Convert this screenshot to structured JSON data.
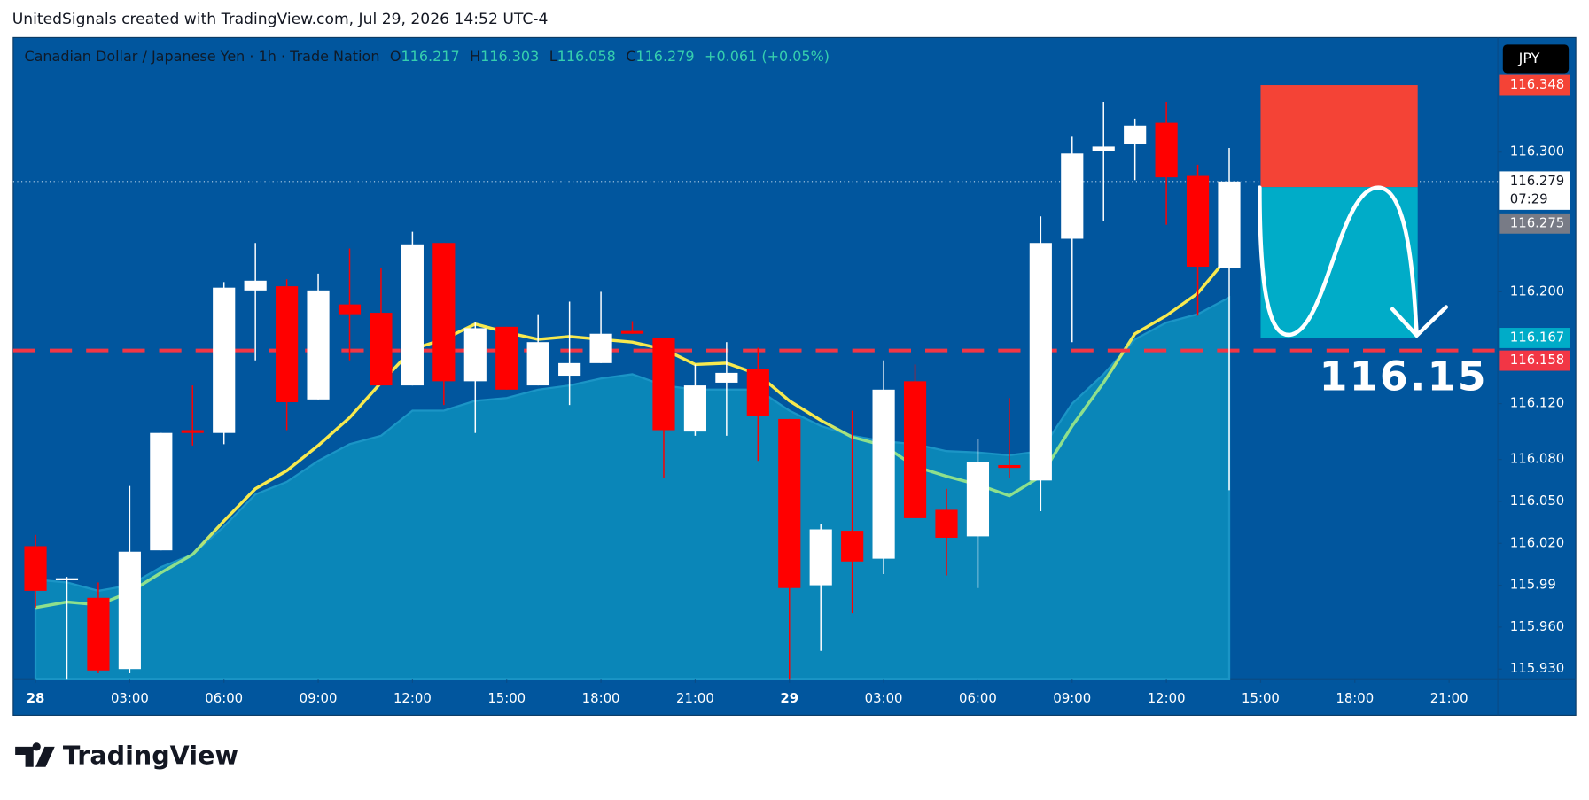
{
  "caption": "UnitedSignals created with TradingView.com, Jul 29, 2026 14:52 UTC-4",
  "footer": {
    "brand": "TradingView"
  },
  "chart_data": {
    "type": "candlestick",
    "symbol_title": "Canadian Dollar / Japanese Yen · 1h · Trade Nation",
    "ohlc_letters": [
      "O",
      "H",
      "L",
      "C"
    ],
    "change": "+0.061 (+0.05%)",
    "currency": "JPY",
    "countdown": "07:29",
    "annotation": "116.15",
    "x": [
      0,
      1,
      2,
      3,
      4,
      5,
      6,
      7,
      8,
      9,
      10,
      11,
      12,
      13,
      14,
      15,
      16,
      17,
      18,
      19,
      20,
      21,
      22,
      23,
      24,
      25,
      26,
      27,
      28,
      29,
      30,
      31,
      32,
      33,
      34,
      35,
      36,
      37,
      38
    ],
    "open": [
      116.018,
      115.995,
      115.981,
      115.93,
      116.015,
      116.101,
      116.099,
      116.201,
      116.204,
      116.123,
      116.191,
      116.185,
      116.133,
      116.235,
      116.136,
      116.175,
      116.133,
      116.14,
      116.149,
      116.172,
      116.167,
      116.1,
      116.135,
      116.145,
      116.109,
      115.99,
      116.029,
      116.009,
      116.136,
      116.044,
      116.025,
      116.076,
      116.065,
      116.238,
      116.301,
      116.306,
      116.321,
      116.283,
      116.217
    ],
    "high": [
      116.026,
      115.996,
      115.992,
      116.061,
      116.099,
      116.133,
      116.207,
      116.235,
      116.209,
      116.213,
      116.231,
      116.217,
      116.243,
      116.235,
      116.178,
      116.175,
      116.184,
      116.193,
      116.2,
      116.179,
      116.167,
      116.148,
      116.164,
      116.16,
      116.109,
      116.034,
      116.115,
      116.151,
      116.148,
      116.059,
      116.095,
      116.124,
      116.254,
      116.311,
      116.336,
      116.324,
      116.336,
      116.291,
      116.303
    ],
    "low": [
      115.974,
      115.923,
      115.927,
      115.927,
      116.015,
      116.09,
      116.091,
      116.151,
      116.101,
      116.123,
      116.151,
      116.133,
      116.133,
      116.119,
      116.099,
      116.13,
      116.133,
      116.119,
      116.149,
      116.17,
      116.067,
      116.097,
      116.097,
      116.079,
      115.923,
      115.943,
      115.97,
      115.998,
      116.038,
      115.997,
      115.988,
      116.067,
      116.043,
      116.164,
      116.251,
      116.28,
      116.248,
      116.183,
      116.058
    ],
    "close": [
      115.986,
      115.995,
      115.929,
      116.014,
      116.099,
      116.099,
      116.203,
      116.208,
      116.121,
      116.201,
      116.184,
      116.133,
      116.234,
      116.136,
      116.174,
      116.13,
      116.164,
      116.149,
      116.17,
      116.17,
      116.101,
      116.133,
      116.142,
      116.111,
      115.988,
      116.03,
      116.007,
      116.13,
      116.038,
      116.024,
      116.078,
      116.074,
      116.235,
      116.299,
      116.304,
      116.319,
      116.282,
      116.218,
      116.279
    ],
    "ma": [
      115.974,
      115.978,
      115.976,
      115.985,
      115.999,
      116.012,
      116.036,
      116.059,
      116.072,
      116.09,
      116.11,
      116.135,
      116.159,
      116.166,
      116.177,
      116.171,
      116.166,
      116.168,
      116.166,
      116.164,
      116.159,
      116.148,
      116.149,
      116.141,
      116.122,
      116.108,
      116.096,
      116.09,
      116.075,
      116.068,
      116.062,
      116.054,
      116.068,
      116.104,
      116.135,
      116.17,
      116.183,
      116.199,
      116.226
    ],
    "area": [
      115.994,
      115.992,
      115.986,
      115.99,
      116.003,
      116.012,
      116.032,
      116.055,
      116.064,
      116.079,
      116.091,
      116.097,
      116.115,
      116.115,
      116.122,
      116.124,
      116.13,
      116.133,
      116.138,
      116.141,
      116.133,
      116.13,
      116.13,
      116.13,
      116.115,
      116.104,
      116.097,
      116.093,
      116.091,
      116.086,
      116.085,
      116.083,
      116.086,
      116.12,
      116.141,
      116.166,
      116.178,
      116.184,
      116.196
    ],
    "up_color": "#ffffff",
    "down_color": "#ff0000",
    "ma_above_color": "#f7e94e",
    "ma_below_color": "#8ee08c",
    "area_color": "#0a86b8",
    "level": 116.158,
    "level_color": "#f23645",
    "position": {
      "stop": 116.348,
      "entry": 116.275,
      "target": 116.167,
      "start": 39,
      "end": 44,
      "stop_color": "#f44336",
      "target_color": "#00acc8",
      "entry_color": "#787b86"
    },
    "xlim": [
      -0.71,
      46.55
    ],
    "xticks": [
      {
        "value": 0,
        "label": "28"
      },
      {
        "value": 3,
        "label": "03:00"
      },
      {
        "value": 6,
        "label": "06:00"
      },
      {
        "value": 9,
        "label": "09:00"
      },
      {
        "value": 12,
        "label": "12:00"
      },
      {
        "value": 15,
        "label": "15:00"
      },
      {
        "value": 18,
        "label": "18:00"
      },
      {
        "value": 21,
        "label": "21:00"
      },
      {
        "value": 24,
        "label": "29"
      },
      {
        "value": 27,
        "label": "03:00"
      },
      {
        "value": 30,
        "label": "06:00"
      },
      {
        "value": 33,
        "label": "09:00"
      },
      {
        "value": 36,
        "label": "12:00"
      },
      {
        "value": 39,
        "label": "15:00"
      },
      {
        "value": 42,
        "label": "18:00"
      },
      {
        "value": 45,
        "label": "21:00"
      }
    ],
    "ylim": [
      115.923,
      116.382
    ],
    "yticks": [
      {
        "value": 116.3,
        "label": "116.300"
      },
      {
        "value": 116.2,
        "label": "116.200"
      },
      {
        "value": 116.12,
        "label": "116.120"
      },
      {
        "value": 116.08,
        "label": "116.080"
      },
      {
        "value": 116.05,
        "label": "116.050"
      },
      {
        "value": 116.02,
        "label": "116.020"
      },
      115.99,
      {
        "value": 115.96,
        "label": "115.960"
      },
      {
        "value": 115.93,
        "label": "115.930"
      }
    ]
  }
}
